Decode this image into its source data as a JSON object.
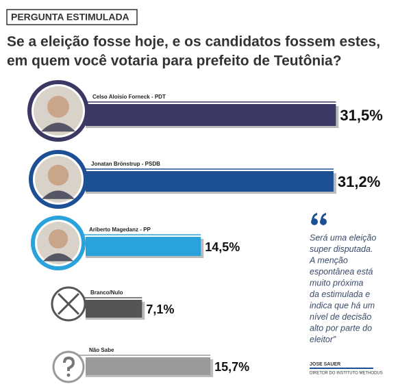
{
  "chart_data": {
    "type": "bar",
    "orientation": "horizontal",
    "kicker": "PERGUNTA ESTIMULADA",
    "title": [
      "Se a eleição fosse hoje, e os candidatos fossem estes,",
      "em quem você votaria para prefeito de Teutônia?"
    ],
    "categories": [
      "Celso Aloísio Forneck - PDT",
      "Jonatan Brönstrup - PSDB",
      "Ariberto Magedanz - PP",
      "Branco/Nulo",
      "Não Sabe"
    ],
    "values": [
      31.5,
      31.2,
      14.5,
      7.1,
      15.7
    ],
    "value_labels": [
      "31,5%",
      "31,2%",
      "14,5%",
      "7,1%",
      "15,7%"
    ],
    "colors": [
      "#3b3863",
      "#1d4f94",
      "#2aa2dc",
      "#555555",
      "#9a9a9a"
    ],
    "quote": [
      "Será uma eleição",
      "super disputada.",
      "A menção",
      "espontânea está",
      "muito próxima",
      "da estimulada e",
      "indica que há um",
      "nível de decisão",
      "alto por parte do",
      "eleitor”"
    ],
    "author": "JOSE SAUER",
    "author_role": "DIRETOR DO INSTITUTO METHODUS"
  }
}
